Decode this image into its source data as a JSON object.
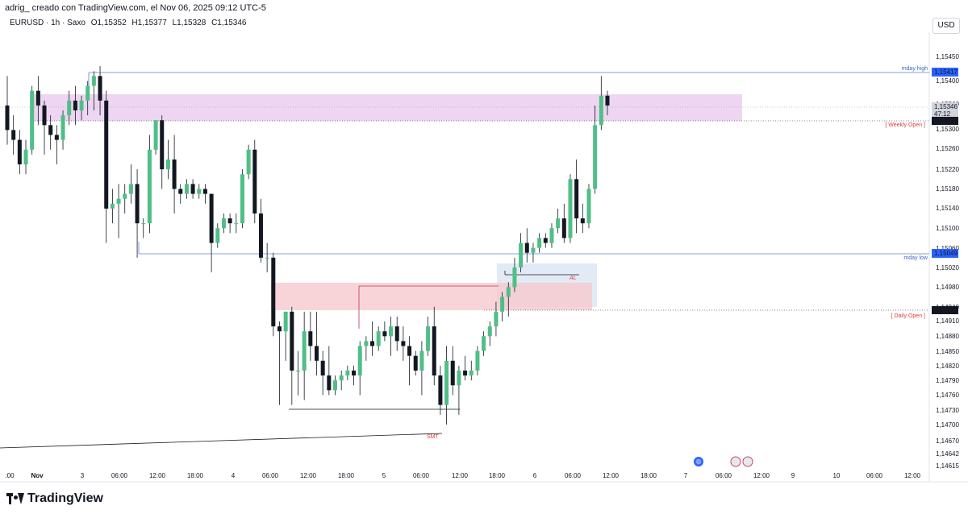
{
  "header": {
    "caption": "adrig_ creado con TradingView.com, el Nov 06, 2025 09:12 UTC-5"
  },
  "symbol": {
    "name": "EURUSD · 1h · Saxo",
    "open": "O1,15352",
    "high": "H1,15377",
    "low": "L1,15328",
    "close": "C1,15346"
  },
  "currency": "USD",
  "brand": "TradingView",
  "colors": {
    "up": "#4fbf86",
    "down": "#131722",
    "mday_line": "#5b7fd4",
    "weekly_zone": "#e8c8ee",
    "fvg_zone": "#f6c9ce",
    "blue_box": "#dde6f3",
    "annotation_red": "#e03a3a"
  },
  "chart_data": {
    "type": "candlestick",
    "y_axis_ticks": [
      "1,15450",
      "1,15400",
      "1,15360",
      "1,15300",
      "1,15260",
      "1,15220",
      "1,15180",
      "1,15140",
      "1,15100",
      "1,15060",
      "1,15020",
      "1,14980",
      "1,14940",
      "1,14910",
      "1,14880",
      "1,14850",
      "1,14820",
      "1,14790",
      "1,14760",
      "1,14730",
      "1,14700",
      "1,14670",
      "1,14642",
      "1,14615"
    ],
    "x_axis_ticks": [
      ":00",
      "Nov",
      "3",
      "06:00",
      "12:00",
      "18:00",
      "4",
      "06:00",
      "12:00",
      "18:00",
      "5",
      "06:00",
      "12:00",
      "18:00",
      "6",
      "06:00",
      "12:00",
      "18:00",
      "7",
      "06:00",
      "12:00",
      "9",
      "10",
      "06:00",
      "12:00"
    ],
    "price_tags": [
      {
        "value": "1,15417",
        "style": "blue"
      },
      {
        "value": "1,15346",
        "style": "gray"
      },
      {
        "value": "47:12",
        "style": "gray"
      },
      {
        "value": "1,15319",
        "style": "dark"
      },
      {
        "value": "1,15049",
        "style": "blue"
      },
      {
        "value": "1,14931",
        "style": "dark"
      }
    ],
    "annotations": {
      "mday_high": "mday high",
      "weekly_open": "[ Weekly Open ]",
      "mday_low": "mday low",
      "daily_open": "[ Daily Open ]",
      "al": "AL",
      "smt": "SMT"
    },
    "levels": {
      "mday_high": 1.15417,
      "weekly_open": 1.15319,
      "mday_low": 1.15049,
      "daily_open": 1.14931,
      "last_price": 1.15346
    },
    "candles": [
      [
        1.1535,
        1.1541,
        1.1527,
        1.153
      ],
      [
        1.153,
        1.1533,
        1.1525,
        1.1528
      ],
      [
        1.1528,
        1.153,
        1.1521,
        1.1523
      ],
      [
        1.1523,
        1.1528,
        1.1521,
        1.1526
      ],
      [
        1.1526,
        1.1539,
        1.1525,
        1.1538
      ],
      [
        1.1538,
        1.1541,
        1.1531,
        1.1535
      ],
      [
        1.1535,
        1.1536,
        1.1525,
        1.1531
      ],
      [
        1.1531,
        1.1533,
        1.1526,
        1.1529
      ],
      [
        1.1529,
        1.1531,
        1.1523,
        1.1528
      ],
      [
        1.1528,
        1.1534,
        1.1526,
        1.1533
      ],
      [
        1.1533,
        1.1538,
        1.1531,
        1.1536
      ],
      [
        1.1536,
        1.1539,
        1.1531,
        1.1534
      ],
      [
        1.1534,
        1.1537,
        1.1532,
        1.1536
      ],
      [
        1.1536,
        1.154,
        1.1533,
        1.1539
      ],
      [
        1.1539,
        1.1542,
        1.1534,
        1.1541
      ],
      [
        1.1541,
        1.1543,
        1.1533,
        1.1536
      ],
      [
        1.1536,
        1.1538,
        1.1507,
        1.1514
      ],
      [
        1.1514,
        1.1518,
        1.1511,
        1.1515
      ],
      [
        1.1515,
        1.1519,
        1.1508,
        1.1516
      ],
      [
        1.1516,
        1.1519,
        1.1513,
        1.1517
      ],
      [
        1.1517,
        1.1523,
        1.1515,
        1.1519
      ],
      [
        1.1519,
        1.1522,
        1.1504,
        1.1511
      ],
      [
        1.1511,
        1.1512,
        1.1508,
        1.1511
      ],
      [
        1.1511,
        1.1529,
        1.1509,
        1.1526
      ],
      [
        1.1526,
        1.1532,
        1.1525,
        1.1532
      ],
      [
        1.1532,
        1.1533,
        1.1518,
        1.1522
      ],
      [
        1.1522,
        1.1528,
        1.152,
        1.1524
      ],
      [
        1.1524,
        1.1529,
        1.1513,
        1.1518
      ],
      [
        1.1518,
        1.1519,
        1.1515,
        1.1517
      ],
      [
        1.1517,
        1.152,
        1.1516,
        1.1519
      ],
      [
        1.1519,
        1.152,
        1.1516,
        1.1517
      ],
      [
        1.1517,
        1.1519,
        1.1516,
        1.1518
      ],
      [
        1.1518,
        1.1519,
        1.1515,
        1.1517
      ],
      [
        1.1517,
        1.1517,
        1.1501,
        1.1507
      ],
      [
        1.1507,
        1.1511,
        1.1506,
        1.151
      ],
      [
        1.151,
        1.1513,
        1.1509,
        1.1512
      ],
      [
        1.1512,
        1.1513,
        1.1509,
        1.1511
      ],
      [
        1.1511,
        1.1513,
        1.1509,
        1.1511
      ],
      [
        1.1511,
        1.1522,
        1.151,
        1.1521
      ],
      [
        1.1521,
        1.1527,
        1.152,
        1.1526
      ],
      [
        1.1526,
        1.1528,
        1.1511,
        1.1513
      ],
      [
        1.1513,
        1.1516,
        1.1503,
        1.1504
      ],
      [
        1.1504,
        1.1507,
        1.1501,
        1.1504
      ],
      [
        1.1504,
        1.1505,
        1.1488,
        1.149
      ],
      [
        1.149,
        1.1491,
        1.1474,
        1.1489
      ],
      [
        1.1489,
        1.1493,
        1.1483,
        1.1493
      ],
      [
        1.1493,
        1.1494,
        1.1474,
        1.1481
      ],
      [
        1.1481,
        1.1485,
        1.1476,
        1.1481
      ],
      [
        1.1481,
        1.1493,
        1.1475,
        1.1489
      ],
      [
        1.1489,
        1.1493,
        1.1483,
        1.1486
      ],
      [
        1.1486,
        1.1493,
        1.148,
        1.1483
      ],
      [
        1.1483,
        1.1485,
        1.1476,
        1.148
      ],
      [
        1.148,
        1.1486,
        1.1476,
        1.1477
      ],
      [
        1.1477,
        1.148,
        1.1476,
        1.1479
      ],
      [
        1.1479,
        1.1481,
        1.1477,
        1.148
      ],
      [
        1.148,
        1.1482,
        1.1479,
        1.1481
      ],
      [
        1.1481,
        1.1482,
        1.1478,
        1.148
      ],
      [
        1.148,
        1.1487,
        1.1476,
        1.1486
      ],
      [
        1.1486,
        1.1488,
        1.1483,
        1.1487
      ],
      [
        1.1487,
        1.1491,
        1.1484,
        1.1486
      ],
      [
        1.1486,
        1.149,
        1.1485,
        1.1489
      ],
      [
        1.1489,
        1.1491,
        1.1487,
        1.1488
      ],
      [
        1.1488,
        1.1492,
        1.1484,
        1.149
      ],
      [
        1.149,
        1.1492,
        1.1485,
        1.1487
      ],
      [
        1.1487,
        1.149,
        1.1483,
        1.1486
      ],
      [
        1.1486,
        1.1488,
        1.1478,
        1.1484
      ],
      [
        1.1484,
        1.1485,
        1.148,
        1.1481
      ],
      [
        1.1481,
        1.1487,
        1.1476,
        1.1485
      ],
      [
        1.1485,
        1.1492,
        1.1484,
        1.149
      ],
      [
        1.149,
        1.1494,
        1.1478,
        1.148
      ],
      [
        1.148,
        1.1482,
        1.1472,
        1.1474
      ],
      [
        1.1474,
        1.1486,
        1.147,
        1.1483
      ],
      [
        1.1483,
        1.1486,
        1.1476,
        1.1478
      ],
      [
        1.1478,
        1.1482,
        1.1472,
        1.1481
      ],
      [
        1.1481,
        1.1484,
        1.1479,
        1.148
      ],
      [
        1.148,
        1.1483,
        1.1479,
        1.1481
      ],
      [
        1.1481,
        1.1486,
        1.148,
        1.1485
      ],
      [
        1.1485,
        1.1489,
        1.1484,
        1.1488
      ],
      [
        1.1488,
        1.1491,
        1.1486,
        1.149
      ],
      [
        1.149,
        1.1495,
        1.1488,
        1.1493
      ],
      [
        1.1493,
        1.1497,
        1.1491,
        1.1496
      ],
      [
        1.1496,
        1.1499,
        1.1492,
        1.1498
      ],
      [
        1.1498,
        1.1504,
        1.1497,
        1.1502
      ],
      [
        1.1502,
        1.1509,
        1.1501,
        1.1507
      ],
      [
        1.1507,
        1.151,
        1.1503,
        1.1505
      ],
      [
        1.1505,
        1.1507,
        1.1503,
        1.1506
      ],
      [
        1.1506,
        1.1509,
        1.1505,
        1.1508
      ],
      [
        1.1508,
        1.1509,
        1.1506,
        1.1507
      ],
      [
        1.1507,
        1.1511,
        1.1506,
        1.151
      ],
      [
        1.151,
        1.1514,
        1.1509,
        1.1512
      ],
      [
        1.1512,
        1.1515,
        1.1507,
        1.1508
      ],
      [
        1.1508,
        1.1521,
        1.1507,
        1.152
      ],
      [
        1.152,
        1.1524,
        1.1509,
        1.1512
      ],
      [
        1.1512,
        1.1515,
        1.1509,
        1.1511
      ],
      [
        1.1511,
        1.1519,
        1.151,
        1.1518
      ],
      [
        1.1518,
        1.1535,
        1.1517,
        1.1531
      ],
      [
        1.1531,
        1.1541,
        1.153,
        1.1537
      ],
      [
        1.1537,
        1.1538,
        1.1533,
        1.1535
      ]
    ]
  }
}
